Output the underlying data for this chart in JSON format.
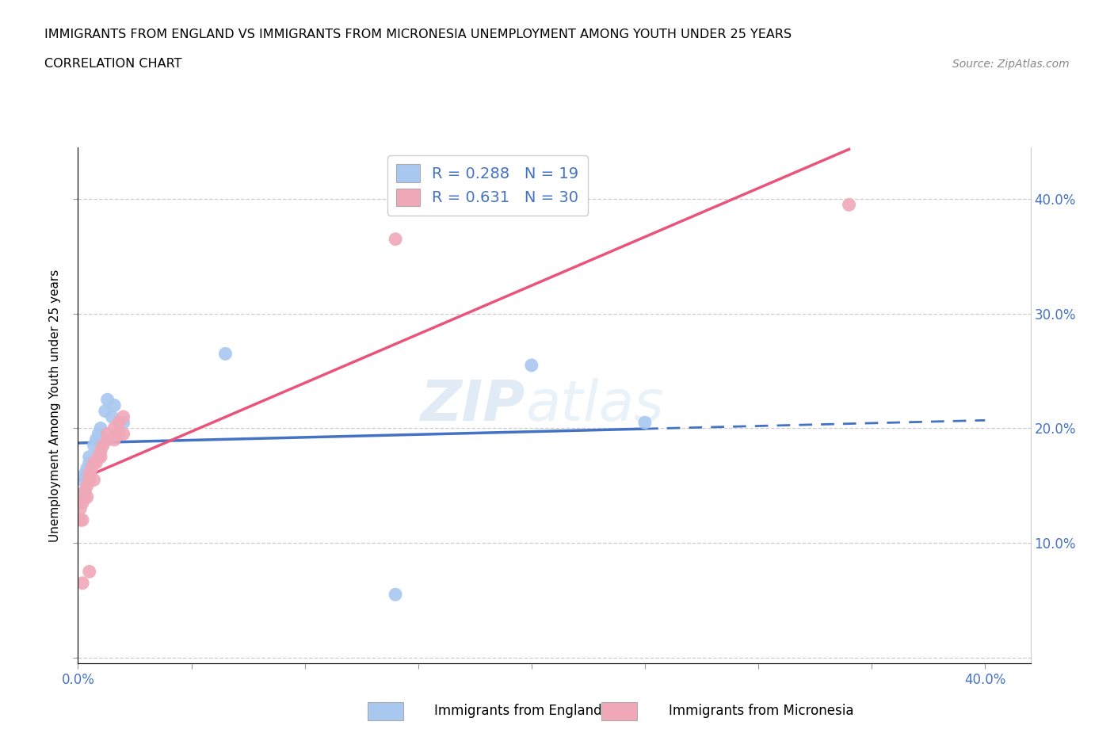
{
  "title_line1": "IMMIGRANTS FROM ENGLAND VS IMMIGRANTS FROM MICRONESIA UNEMPLOYMENT AMONG YOUTH UNDER 25 YEARS",
  "title_line2": "CORRELATION CHART",
  "source_text": "Source: ZipAtlas.com",
  "ylabel": "Unemployment Among Youth under 25 years",
  "xlim": [
    0.0,
    0.42
  ],
  "ylim": [
    -0.005,
    0.445
  ],
  "england_color": "#a8c8f0",
  "micronesia_color": "#f0a8b8",
  "england_line_color": "#4472c4",
  "micronesia_line_color": "#e8547a",
  "england_R": 0.288,
  "england_N": 19,
  "micronesia_R": 0.631,
  "micronesia_N": 30,
  "legend_label_england": "Immigrants from England",
  "legend_label_micronesia": "Immigrants from Micronesia",
  "watermark_part1": "ZIP",
  "watermark_part2": "atlas",
  "england_x": [
    0.002,
    0.003,
    0.003,
    0.004,
    0.005,
    0.005,
    0.007,
    0.008,
    0.009,
    0.01,
    0.012,
    0.013,
    0.015,
    0.016,
    0.02,
    0.065,
    0.14,
    0.2,
    0.25
  ],
  "england_y": [
    0.155,
    0.145,
    0.16,
    0.165,
    0.17,
    0.175,
    0.185,
    0.19,
    0.195,
    0.2,
    0.215,
    0.225,
    0.21,
    0.22,
    0.205,
    0.265,
    0.055,
    0.255,
    0.205
  ],
  "micronesia_x": [
    0.001,
    0.001,
    0.002,
    0.002,
    0.003,
    0.003,
    0.004,
    0.004,
    0.005,
    0.005,
    0.006,
    0.007,
    0.007,
    0.008,
    0.009,
    0.01,
    0.01,
    0.011,
    0.013,
    0.013,
    0.016,
    0.016,
    0.018,
    0.018,
    0.02,
    0.02,
    0.14,
    0.34,
    0.002,
    0.005
  ],
  "micronesia_y": [
    0.12,
    0.13,
    0.12,
    0.135,
    0.14,
    0.145,
    0.14,
    0.15,
    0.155,
    0.16,
    0.165,
    0.155,
    0.17,
    0.17,
    0.175,
    0.175,
    0.18,
    0.185,
    0.19,
    0.195,
    0.19,
    0.2,
    0.195,
    0.205,
    0.195,
    0.21,
    0.365,
    0.395,
    0.065,
    0.075
  ]
}
